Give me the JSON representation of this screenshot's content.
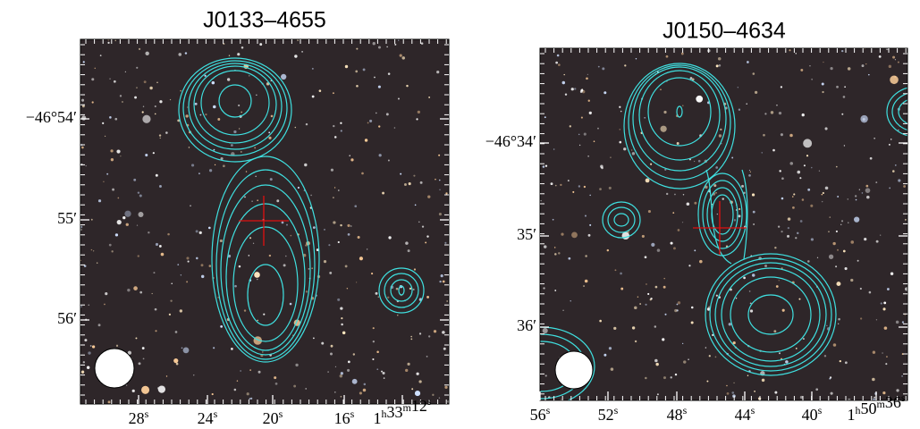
{
  "panels": [
    {
      "title": "J0133–4655",
      "x_tick_labels": [
        [
          {
            "text": "28",
            "sup": "s"
          }
        ],
        [
          {
            "text": "24",
            "sup": "s"
          }
        ],
        [
          {
            "text": "20",
            "sup": "s"
          }
        ],
        [
          {
            "text": "16",
            "sup": "s"
          }
        ],
        [
          {
            "text": "1",
            "sup": "h"
          },
          {
            "text": "33",
            "sup": "m"
          },
          {
            "text": "12",
            "sup": "s"
          }
        ]
      ],
      "y_tick_labels": [
        "−46°54′",
        "55′",
        "56′"
      ]
    },
    {
      "title": "J0150–4634",
      "x_tick_labels": [
        [
          {
            "text": "56",
            "sup": "s"
          }
        ],
        [
          {
            "text": "52",
            "sup": "s"
          }
        ],
        [
          {
            "text": "48",
            "sup": "s"
          }
        ],
        [
          {
            "text": "44",
            "sup": "s"
          }
        ],
        [
          {
            "text": "40",
            "sup": "s"
          }
        ],
        [
          {
            "text": "1",
            "sup": "h"
          },
          {
            "text": "50",
            "sup": "m"
          },
          {
            "text": "36",
            "sup": "s"
          }
        ]
      ],
      "y_tick_labels": [
        "−46°34′",
        "35′",
        "36′"
      ]
    }
  ]
}
